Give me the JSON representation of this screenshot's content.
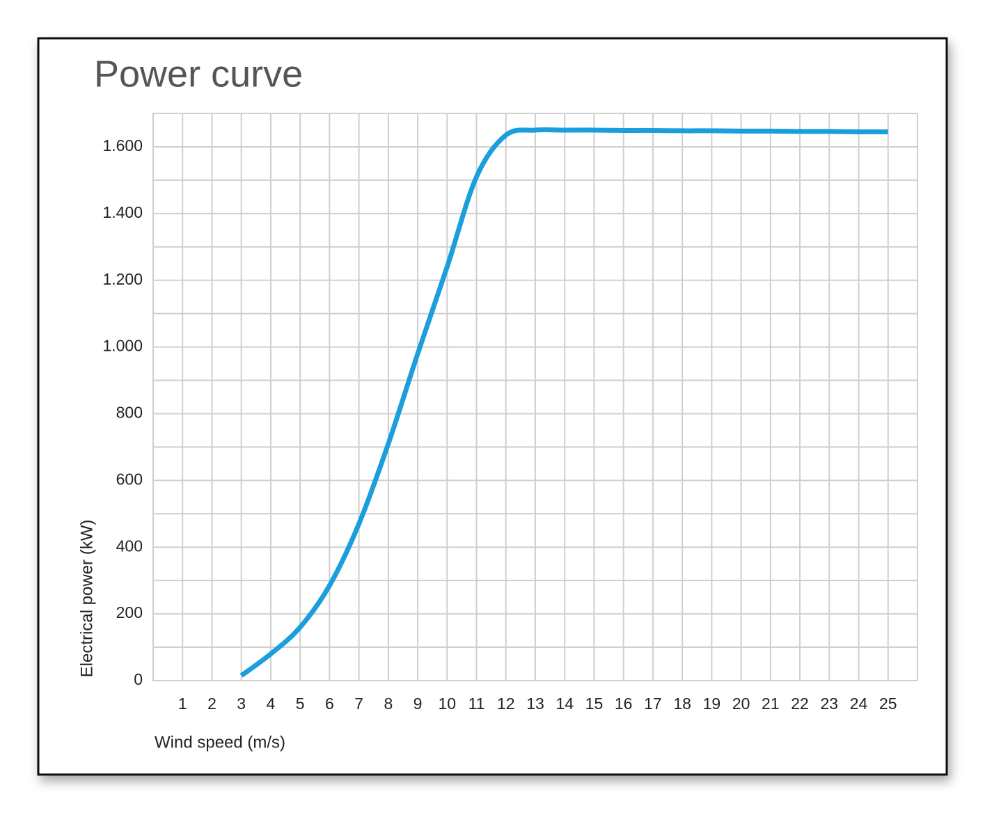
{
  "chart_data": {
    "type": "line",
    "title": "Power curve",
    "x_label": "Wind speed (m/s)",
    "y_label": "Electrical power (kW)",
    "series": [
      {
        "name": "Power curve",
        "color": "#1a9fdc",
        "x": [
          3,
          4,
          5,
          6,
          7,
          8,
          9,
          10,
          11,
          12,
          13,
          14,
          15,
          16,
          17,
          18,
          19,
          20,
          21,
          22,
          23,
          24,
          25
        ],
        "values": [
          15,
          80,
          160,
          285,
          470,
          710,
          980,
          1240,
          1510,
          1635,
          1650,
          1650,
          1650,
          1649,
          1649,
          1648,
          1648,
          1647,
          1647,
          1646,
          1646,
          1645,
          1645
        ]
      }
    ],
    "xlim": [
      0,
      26
    ],
    "xticks": [
      1,
      2,
      3,
      4,
      5,
      6,
      7,
      8,
      9,
      10,
      11,
      12,
      13,
      14,
      15,
      16,
      17,
      18,
      19,
      20,
      21,
      22,
      23,
      24,
      25
    ],
    "ylim": [
      0,
      1700
    ],
    "yticks": [
      0,
      200,
      400,
      600,
      800,
      {
        "value": 1000,
        "label": "1.000"
      },
      {
        "value": 1200,
        "label": "1.200"
      },
      {
        "value": 1400,
        "label": "1.400"
      },
      {
        "value": 1600,
        "label": "1.600"
      }
    ],
    "y_minor_grid": [
      100,
      300,
      500,
      700,
      900,
      1100,
      1300,
      1500
    ],
    "grid": true
  }
}
